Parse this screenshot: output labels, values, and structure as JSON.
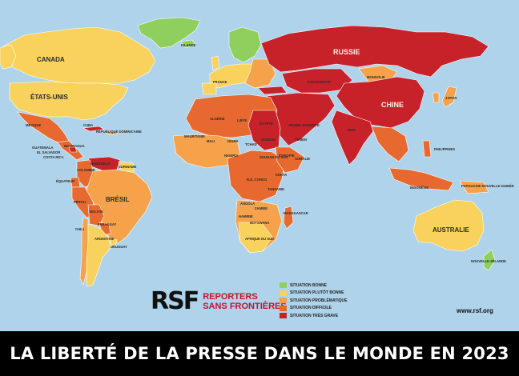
{
  "title": "LA LIBERTÉ DE LA PRESSE DANS LE MONDE EN 2023",
  "website": "www.rsf.org",
  "logo": {
    "mark": "RSF",
    "line1": "REPORTERS",
    "line2": "SANS FRONTIÈRES"
  },
  "colors": {
    "ocean": "#aed3ea",
    "bonne": "#8fcf5e",
    "plutot_bonne": "#f8d25c",
    "problematique": "#f5a24b",
    "difficile": "#e8692f",
    "tres_grave": "#c7222a"
  },
  "legend": [
    {
      "label": "SITUATION BONNE",
      "color": "#8fcf5e"
    },
    {
      "label": "SITUATION PLUTÔT BONNE",
      "color": "#f8d25c"
    },
    {
      "label": "SITUATION PROBLÉMATIQUE",
      "color": "#f5a24b"
    },
    {
      "label": "SITUATION DIFFICILE",
      "color": "#e8692f"
    },
    {
      "label": "SITUATION TRÈS GRAVE",
      "color": "#c7222a"
    }
  ],
  "labels": {
    "canada": "CANADA",
    "etats_unis": "ÉTATS-UNIS",
    "mexique": "MEXIQUE",
    "bresil": "BRÉSIL",
    "perou": "PÉROU",
    "bolivie": "BOLIVIE",
    "paraguay": "PARAGUAY",
    "argentine": "ARGENTINE",
    "chili": "CHILI",
    "uruguay": "URUGUAY",
    "colombie": "COLOMBIE",
    "venezuela": "VENEZUELA",
    "equateur": "ÉQUATEUR",
    "russie": "RUSSIE",
    "chine": "CHINE",
    "inde": "INDE",
    "mongolie": "MONGOLIE",
    "kazakhstan": "KAZAKHSTAN",
    "australie": "AUSTRALIE",
    "indonesie": "INDONÉSIE",
    "philippines": "PHILIPPINES",
    "nouvelle_zelande": "NOUVELLE-ZÉLANDE",
    "algerie": "ALGÉRIE",
    "libye": "LIBYE",
    "egypte": "ÉGYPTE",
    "mali": "MALI",
    "niger": "NIGER",
    "tchad": "TCHAD",
    "soudan": "SOUDAN",
    "soudan_du_sud": "SOUDAN DU SUD",
    "ethiopie": "ÉTHIOPIE",
    "somalie": "SOMALIE",
    "kenya": "KENYA",
    "tanzanie": "TANZANIE",
    "rd_congo": "R.D. CONGO",
    "angola": "ANGOLA",
    "zambie": "ZAMBIE",
    "namibie": "NAMIBIE",
    "botswana": "BOTSWANA",
    "afrique_du_sud": "AFRIQUE DU SUD",
    "madagascar": "MADAGASCAR",
    "mauritanie": "MAURITANIE",
    "nigeria": "NIGERIA",
    "france": "FRANCE",
    "islande": "ISLANDE",
    "arabie_saoudite": "ARABIE SAOUDITE",
    "yemen": "YÉMEN",
    "japon": "JAPON",
    "cuba": "CUBA",
    "republique_dominicaine": "RÉPUBLIQUE DOMINICAINE",
    "guatemala": "GUATEMALA",
    "el_salvador": "EL SALVADOR",
    "nicaragua": "NICARAGUA",
    "costa_rica": "COSTA RICA",
    "papouasie": "PAPOUASIE NOUVELLE-GUINÉE",
    "suriname": "SURINAME"
  }
}
